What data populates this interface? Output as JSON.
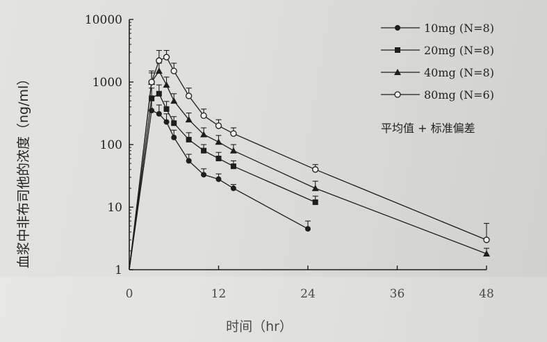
{
  "chart_data": {
    "type": "line",
    "title": "",
    "xlabel": "时间（hr）",
    "ylabel": "血浆中非布司他的浓度（ng/ml）",
    "x_ticks": [
      "0",
      "12",
      "24",
      "36",
      "48"
    ],
    "y_ticks": [
      "1",
      "10",
      "100",
      "1000",
      "10000"
    ],
    "xlim": [
      0,
      48
    ],
    "ylim": [
      1,
      10000
    ],
    "y_scale": "log",
    "grid": false,
    "legend_position": "top-right",
    "note": "平均值 + 标准偏差",
    "series": [
      {
        "name": "10mg (N=8)",
        "marker": "circle-filled",
        "x": [
          0,
          3,
          4,
          5,
          6,
          8,
          10,
          12,
          14,
          24
        ],
        "y": [
          1,
          350,
          310,
          230,
          130,
          55,
          33,
          28,
          20,
          4.5
        ],
        "err": [
          0,
          150,
          120,
          80,
          40,
          15,
          8,
          6,
          3,
          1.5
        ]
      },
      {
        "name": "20mg (N=8)",
        "marker": "square-filled",
        "x": [
          0,
          3,
          4,
          5,
          6,
          8,
          10,
          12,
          14,
          25
        ],
        "y": [
          1,
          550,
          650,
          370,
          220,
          120,
          80,
          60,
          45,
          12
        ],
        "err": [
          0,
          250,
          250,
          120,
          60,
          35,
          20,
          15,
          10,
          3
        ]
      },
      {
        "name": "40mg (N=8)",
        "marker": "triangle-filled",
        "x": [
          0,
          3,
          4,
          5,
          6,
          8,
          10,
          12,
          14,
          25,
          48
        ],
        "y": [
          1,
          1000,
          1500,
          900,
          500,
          250,
          145,
          110,
          80,
          20,
          1.8
        ],
        "err": [
          0,
          400,
          500,
          300,
          150,
          70,
          40,
          30,
          20,
          6,
          0.4
        ]
      },
      {
        "name": "80mg (N=6)",
        "marker": "circle-open",
        "x": [
          0,
          3,
          4,
          5,
          6,
          8,
          10,
          12,
          14,
          25,
          48
        ],
        "y": [
          1,
          1000,
          2200,
          2500,
          1500,
          600,
          290,
          200,
          150,
          40,
          3
        ],
        "err": [
          0,
          500,
          1000,
          700,
          500,
          200,
          80,
          50,
          35,
          8,
          2.5
        ]
      }
    ]
  }
}
